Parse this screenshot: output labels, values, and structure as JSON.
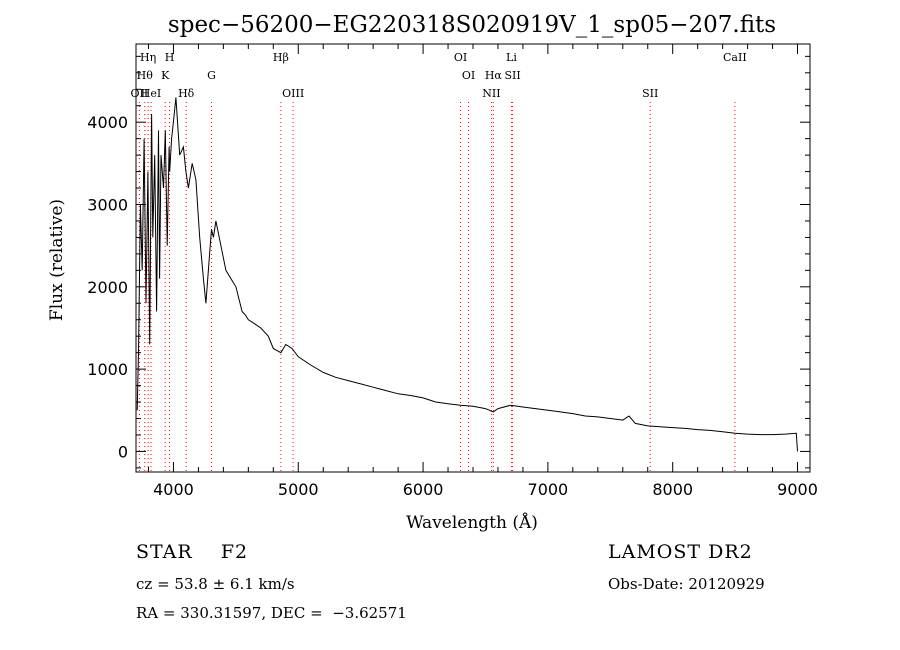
{
  "chart_data": {
    "type": "line",
    "title": "spec−56200−EG220318S020919V_1_sp05−207.fits",
    "xlabel": "Wavelength (Å)",
    "ylabel": "Flux (relative)",
    "xlim": [
      3700,
      9100
    ],
    "ylim": [
      -250,
      4950
    ],
    "x_ticks": [
      4000,
      5000,
      6000,
      7000,
      8000,
      9000
    ],
    "y_ticks": [
      0,
      1000,
      2000,
      3000,
      4000
    ],
    "grid": false,
    "line_color": "#000000",
    "marker_color": "#ff0000",
    "series": [
      {
        "x": [
          3710,
          3720,
          3735,
          3750,
          3765,
          3780,
          3795,
          3810,
          3825,
          3835,
          3850,
          3865,
          3880,
          3889,
          3900,
          3920,
          3935,
          3950,
          3965,
          3970,
          3985,
          4000,
          4020,
          4050,
          4080,
          4100,
          4120,
          4150,
          4180,
          4210,
          4240,
          4260,
          4290,
          4305,
          4320,
          4340,
          4380,
          4420,
          4460,
          4500,
          4550,
          4580,
          4600,
          4650,
          4700,
          4760,
          4800,
          4861,
          4900,
          4950,
          5000,
          5100,
          5200,
          5300,
          5400,
          5500,
          5600,
          5700,
          5800,
          5900,
          6000,
          6100,
          6200,
          6300,
          6400,
          6500,
          6563,
          6600,
          6700,
          6800,
          6900,
          7000,
          7100,
          7200,
          7300,
          7400,
          7500,
          7600,
          7650,
          7700,
          7800,
          7900,
          8000,
          8100,
          8200,
          8300,
          8400,
          8500,
          8600,
          8700,
          8800,
          8900,
          8990,
          9000
        ],
        "y": [
          500,
          1200,
          3000,
          2200,
          3800,
          1800,
          3400,
          1300,
          4100,
          2600,
          3600,
          1700,
          3900,
          2100,
          3600,
          3200,
          3900,
          2500,
          3700,
          3400,
          3800,
          4000,
          4300,
          3600,
          3700,
          3400,
          3200,
          3500,
          3300,
          2600,
          2100,
          1800,
          2400,
          2700,
          2600,
          2800,
          2500,
          2200,
          2100,
          2000,
          1700,
          1650,
          1600,
          1550,
          1500,
          1400,
          1250,
          1200,
          1300,
          1250,
          1150,
          1050,
          960,
          900,
          860,
          820,
          780,
          740,
          700,
          680,
          650,
          600,
          580,
          560,
          550,
          520,
          480,
          520,
          560,
          540,
          520,
          500,
          480,
          460,
          430,
          420,
          400,
          380,
          430,
          340,
          310,
          300,
          290,
          280,
          265,
          255,
          240,
          220,
          210,
          205,
          205,
          210,
          220,
          0
        ]
      }
    ],
    "lines": [
      {
        "wavelength": 3727,
        "label": "OII",
        "row": 3
      },
      {
        "wavelength": 3770,
        "label": "Hθ",
        "row": 2
      },
      {
        "wavelength": 3797,
        "label": "Hη",
        "row": 1
      },
      {
        "wavelength": 3820,
        "label": "HeI",
        "row": 3
      },
      {
        "wavelength": 3934,
        "label": "K",
        "row": 2
      },
      {
        "wavelength": 3969,
        "label": "H",
        "row": 1
      },
      {
        "wavelength": 4102,
        "label": "Hδ",
        "row": 3
      },
      {
        "wavelength": 4305,
        "label": "G",
        "row": 2
      },
      {
        "wavelength": 4861,
        "label": "Hβ",
        "row": 1
      },
      {
        "wavelength": 4959,
        "label": "OIII",
        "row": 3
      },
      {
        "wavelength": 6300,
        "label": "OI",
        "row": 1
      },
      {
        "wavelength": 6364,
        "label": "OI",
        "row": 2
      },
      {
        "wavelength": 6548,
        "label": "NII",
        "row": 3
      },
      {
        "wavelength": 6563,
        "label": "Hα",
        "row": 2
      },
      {
        "wavelength": 6708,
        "label": "Li",
        "row": 1
      },
      {
        "wavelength": 6717,
        "label": "SII",
        "row": 2
      },
      {
        "wavelength": 7820,
        "label": "SII",
        "row": 3
      },
      {
        "wavelength": 8498,
        "label": "CaII",
        "row": 1
      }
    ]
  },
  "info": {
    "class_line": "STAR    F2",
    "survey": "LAMOST DR2",
    "cz": "cz = 53.8 ± 6.1 km/s",
    "obs_date": "Obs-Date: 20120929",
    "radec": "RA = 330.31597, DEC =  −3.62571"
  }
}
